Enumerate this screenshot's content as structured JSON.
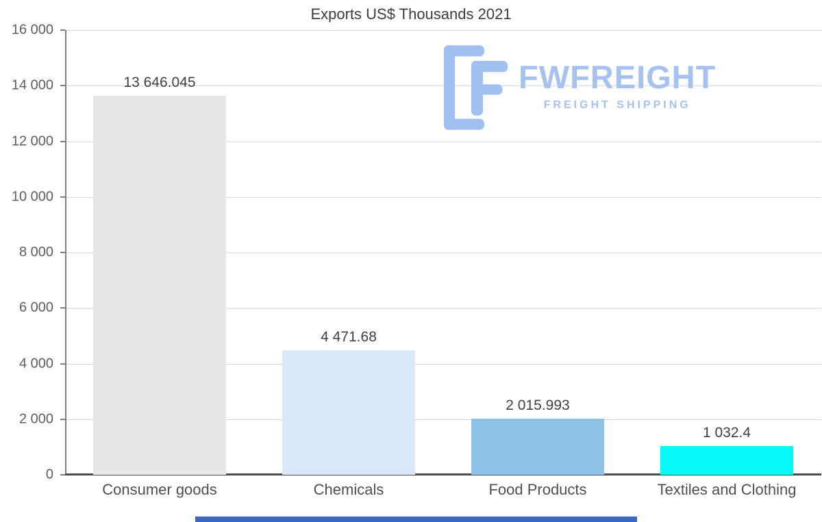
{
  "title": "Exports US$ Thousands 2021",
  "watermark": {
    "brand": "FWFREIGHT",
    "tagline": "FREIGHT SHIPPING",
    "color": "#a6c2ee"
  },
  "chart_data": {
    "type": "bar",
    "title": "Exports US$ Thousands 2021",
    "categories": [
      "Consumer goods",
      "Chemicals",
      "Food Products",
      "Textiles and Clothing"
    ],
    "values": [
      13646.045,
      4471.68,
      2015.993,
      1032.4
    ],
    "value_labels": [
      "13 646.045",
      "4 471.68",
      "2 015.993",
      "1 032.4"
    ],
    "bar_colors": [
      "#e7e7e7",
      "#dae8f9",
      "#8ec2e9",
      "#06f8f8"
    ],
    "ylim": [
      0,
      16000
    ],
    "ytick_step": 2000,
    "ytick_labels": [
      "0",
      "2 000",
      "4 000",
      "6 000",
      "8 000",
      "10 000",
      "12 000",
      "14 000",
      "16 000"
    ],
    "grid": "horizontal",
    "legend": "none",
    "xlabel": "",
    "ylabel": ""
  },
  "footer": {
    "bar_color": "#3868ca"
  }
}
